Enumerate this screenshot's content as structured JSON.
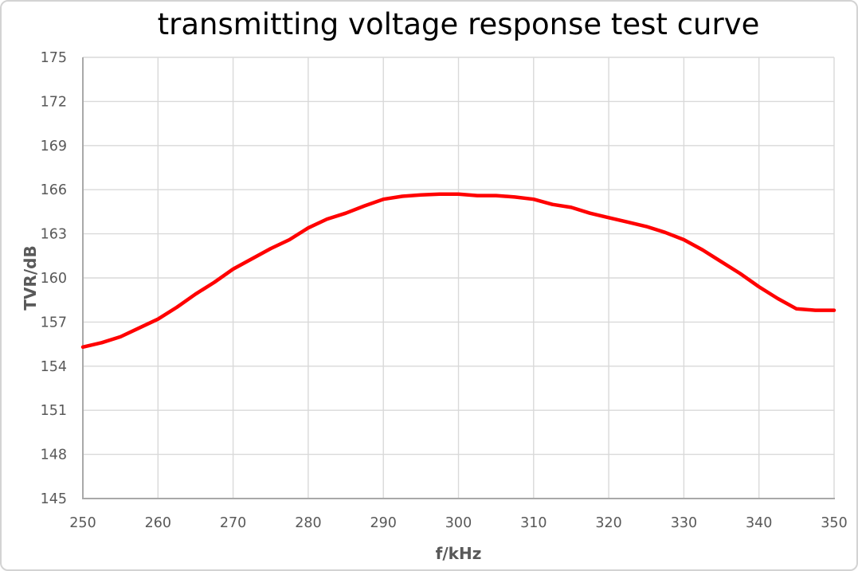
{
  "frame": {
    "background": "#ffffff",
    "border_color": "#d3d3d3"
  },
  "chart_data": {
    "type": "line",
    "title": "transmitting voltage response test curve",
    "xlabel": "f/kHz",
    "ylabel": "TVR/dB",
    "xlim": [
      250,
      350
    ],
    "ylim": [
      145,
      175
    ],
    "x_ticks": [
      250,
      260,
      270,
      280,
      290,
      300,
      310,
      320,
      330,
      340,
      350
    ],
    "y_ticks": [
      145,
      148,
      151,
      154,
      157,
      160,
      163,
      166,
      169,
      172,
      175
    ],
    "grid": true,
    "legend": "none",
    "series": [
      {
        "color": "#ff0000",
        "line_width": 4.5,
        "x": [
          250,
          252.5,
          255,
          257.5,
          260,
          262.5,
          265,
          267.5,
          270,
          272.5,
          275,
          277.5,
          280,
          282.5,
          285,
          287.5,
          290,
          292.5,
          295,
          297.5,
          300,
          302.5,
          305,
          307.5,
          310,
          312.5,
          315,
          317.5,
          320,
          322.5,
          325,
          327.5,
          330,
          332.5,
          335,
          337.5,
          340,
          342.5,
          345,
          347.5,
          350
        ],
        "y": [
          155.3,
          155.6,
          156.0,
          156.6,
          157.2,
          158.0,
          158.9,
          159.7,
          160.6,
          161.3,
          162.0,
          162.6,
          163.4,
          164.0,
          164.4,
          164.9,
          165.35,
          165.55,
          165.65,
          165.7,
          165.7,
          165.6,
          165.6,
          165.5,
          165.35,
          165.0,
          164.8,
          164.4,
          164.1,
          163.8,
          163.5,
          163.1,
          162.6,
          161.9,
          161.1,
          160.3,
          159.4,
          158.6,
          157.9,
          157.8,
          157.8
        ]
      }
    ],
    "styles": {
      "title_color": "#000000",
      "gridline_color": "#d9d9d9",
      "axis_line_color": "#a9a9a9",
      "tick_label_color": "#595959",
      "axis_title_color": "#595959"
    }
  }
}
